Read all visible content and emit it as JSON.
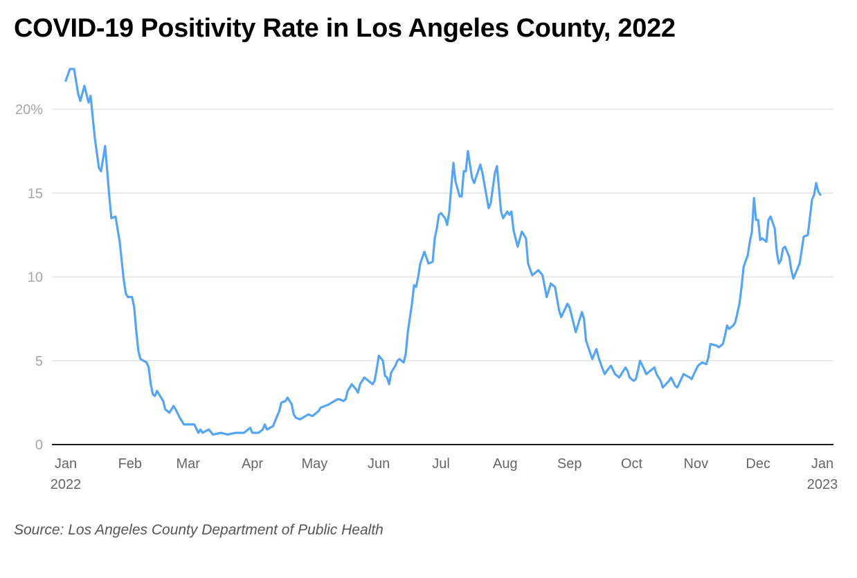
{
  "chart_data": {
    "type": "line",
    "title": "COVID-19 Positivity Rate in Los Angeles County, 2022",
    "source": "Source: Los Angeles County Department of Public Health",
    "xlabel": "",
    "ylabel": "",
    "ylim": [
      0,
      22.5
    ],
    "xlim": [
      "2022-01-01",
      "2023-01-01"
    ],
    "grid": true,
    "line_color": "#55a5f3",
    "y_ticks": [
      {
        "value": 0,
        "label": "0"
      },
      {
        "value": 5,
        "label": "5"
      },
      {
        "value": 10,
        "label": "10"
      },
      {
        "value": 15,
        "label": "15"
      },
      {
        "value": 20,
        "label": "20%"
      }
    ],
    "x_ticks": [
      {
        "date": "2022-01-01",
        "label": "Jan",
        "sub": "2022"
      },
      {
        "date": "2022-02-01",
        "label": "Feb",
        "sub": ""
      },
      {
        "date": "2022-03-01",
        "label": "Mar",
        "sub": ""
      },
      {
        "date": "2022-04-01",
        "label": "Apr",
        "sub": ""
      },
      {
        "date": "2022-05-01",
        "label": "May",
        "sub": ""
      },
      {
        "date": "2022-06-01",
        "label": "Jun",
        "sub": ""
      },
      {
        "date": "2022-07-01",
        "label": "Jul",
        "sub": ""
      },
      {
        "date": "2022-08-01",
        "label": "Aug",
        "sub": ""
      },
      {
        "date": "2022-09-01",
        "label": "Sep",
        "sub": ""
      },
      {
        "date": "2022-10-01",
        "label": "Oct",
        "sub": ""
      },
      {
        "date": "2022-11-01",
        "label": "Nov",
        "sub": ""
      },
      {
        "date": "2022-12-01",
        "label": "Dec",
        "sub": ""
      },
      {
        "date": "2023-01-01",
        "label": "Jan",
        "sub": "2023"
      }
    ],
    "series": [
      {
        "points": [
          [
            "2022-01-01",
            21.7
          ],
          [
            "2022-01-03",
            22.4
          ],
          [
            "2022-01-05",
            22.4
          ],
          [
            "2022-01-07",
            20.9
          ],
          [
            "2022-01-08",
            20.5
          ],
          [
            "2022-01-10",
            21.4
          ],
          [
            "2022-01-12",
            20.4
          ],
          [
            "2022-01-13",
            20.8
          ],
          [
            "2022-01-15",
            18.3
          ],
          [
            "2022-01-17",
            16.5
          ],
          [
            "2022-01-18",
            16.3
          ],
          [
            "2022-01-20",
            17.8
          ],
          [
            "2022-01-22",
            14.8
          ],
          [
            "2022-01-23",
            13.5
          ],
          [
            "2022-01-25",
            13.6
          ],
          [
            "2022-01-27",
            12.1
          ],
          [
            "2022-01-29",
            9.8
          ],
          [
            "2022-01-30",
            9.0
          ],
          [
            "2022-01-31",
            8.8
          ],
          [
            "2022-02-02",
            8.8
          ],
          [
            "2022-02-03",
            8.2
          ],
          [
            "2022-02-04",
            6.8
          ],
          [
            "2022-02-05",
            5.6
          ],
          [
            "2022-02-06",
            5.1
          ],
          [
            "2022-02-09",
            4.9
          ],
          [
            "2022-02-10",
            4.6
          ],
          [
            "2022-02-11",
            3.6
          ],
          [
            "2022-02-12",
            3.0
          ],
          [
            "2022-02-13",
            2.9
          ],
          [
            "2022-02-14",
            3.2
          ],
          [
            "2022-02-17",
            2.6
          ],
          [
            "2022-02-18",
            2.1
          ],
          [
            "2022-02-20",
            1.9
          ],
          [
            "2022-02-22",
            2.3
          ],
          [
            "2022-02-23",
            2.1
          ],
          [
            "2022-02-25",
            1.6
          ],
          [
            "2022-02-26",
            1.4
          ],
          [
            "2022-02-27",
            1.2
          ],
          [
            "2022-03-03",
            1.2
          ],
          [
            "2022-03-04",
            1.2
          ],
          [
            "2022-03-06",
            0.7
          ],
          [
            "2022-03-07",
            0.9
          ],
          [
            "2022-03-08",
            0.7
          ],
          [
            "2022-03-11",
            0.9
          ],
          [
            "2022-03-13",
            0.6
          ],
          [
            "2022-03-17",
            0.7
          ],
          [
            "2022-03-20",
            0.6
          ],
          [
            "2022-03-24",
            0.7
          ],
          [
            "2022-03-28",
            0.7
          ],
          [
            "2022-03-31",
            1.0
          ],
          [
            "2022-04-01",
            0.7
          ],
          [
            "2022-04-04",
            0.7
          ],
          [
            "2022-04-06",
            0.9
          ],
          [
            "2022-04-07",
            1.2
          ],
          [
            "2022-04-08",
            0.9
          ],
          [
            "2022-04-11",
            1.1
          ],
          [
            "2022-04-12",
            1.4
          ],
          [
            "2022-04-14",
            2.0
          ],
          [
            "2022-04-15",
            2.5
          ],
          [
            "2022-04-17",
            2.6
          ],
          [
            "2022-04-18",
            2.8
          ],
          [
            "2022-04-20",
            2.4
          ],
          [
            "2022-04-21",
            1.8
          ],
          [
            "2022-04-22",
            1.6
          ],
          [
            "2022-04-24",
            1.5
          ],
          [
            "2022-04-28",
            1.8
          ],
          [
            "2022-04-30",
            1.7
          ],
          [
            "2022-05-03",
            2.0
          ],
          [
            "2022-05-04",
            2.2
          ],
          [
            "2022-05-08",
            2.4
          ],
          [
            "2022-05-12",
            2.7
          ],
          [
            "2022-05-13",
            2.7
          ],
          [
            "2022-05-15",
            2.6
          ],
          [
            "2022-05-16",
            2.7
          ],
          [
            "2022-05-17",
            3.2
          ],
          [
            "2022-05-19",
            3.6
          ],
          [
            "2022-05-21",
            3.3
          ],
          [
            "2022-05-22",
            3.1
          ],
          [
            "2022-05-23",
            3.6
          ],
          [
            "2022-05-25",
            4.0
          ],
          [
            "2022-05-27",
            3.8
          ],
          [
            "2022-05-29",
            3.6
          ],
          [
            "2022-05-30",
            3.8
          ],
          [
            "2022-05-31",
            4.5
          ],
          [
            "2022-06-01",
            5.3
          ],
          [
            "2022-06-03",
            5.0
          ],
          [
            "2022-06-04",
            4.1
          ],
          [
            "2022-06-05",
            4.0
          ],
          [
            "2022-06-06",
            3.6
          ],
          [
            "2022-06-07",
            4.3
          ],
          [
            "2022-06-09",
            4.7
          ],
          [
            "2022-06-10",
            5.0
          ],
          [
            "2022-06-11",
            5.1
          ],
          [
            "2022-06-13",
            4.9
          ],
          [
            "2022-06-14",
            5.4
          ],
          [
            "2022-06-15",
            6.7
          ],
          [
            "2022-06-17",
            8.4
          ],
          [
            "2022-06-18",
            9.5
          ],
          [
            "2022-06-19",
            9.4
          ],
          [
            "2022-06-20",
            10.0
          ],
          [
            "2022-06-21",
            10.8
          ],
          [
            "2022-06-23",
            11.5
          ],
          [
            "2022-06-25",
            10.8
          ],
          [
            "2022-06-27",
            10.9
          ],
          [
            "2022-06-28",
            12.3
          ],
          [
            "2022-06-29",
            12.9
          ],
          [
            "2022-06-30",
            13.7
          ],
          [
            "2022-07-01",
            13.8
          ],
          [
            "2022-07-03",
            13.5
          ],
          [
            "2022-07-04",
            13.1
          ],
          [
            "2022-07-05",
            13.9
          ],
          [
            "2022-07-06",
            15.4
          ],
          [
            "2022-07-07",
            16.8
          ],
          [
            "2022-07-08",
            15.7
          ],
          [
            "2022-07-10",
            14.8
          ],
          [
            "2022-07-11",
            14.8
          ],
          [
            "2022-07-12",
            16.3
          ],
          [
            "2022-07-13",
            16.3
          ],
          [
            "2022-07-14",
            17.5
          ],
          [
            "2022-07-16",
            15.9
          ],
          [
            "2022-07-17",
            15.6
          ],
          [
            "2022-07-20",
            16.7
          ],
          [
            "2022-07-21",
            16.2
          ],
          [
            "2022-07-24",
            14.1
          ],
          [
            "2022-07-25",
            14.4
          ],
          [
            "2022-07-27",
            16.2
          ],
          [
            "2022-07-28",
            16.6
          ],
          [
            "2022-07-30",
            13.9
          ],
          [
            "2022-07-31",
            13.5
          ],
          [
            "2022-08-02",
            13.9
          ],
          [
            "2022-08-03",
            13.7
          ],
          [
            "2022-08-04",
            13.9
          ],
          [
            "2022-08-05",
            12.8
          ],
          [
            "2022-08-07",
            11.8
          ],
          [
            "2022-08-09",
            12.7
          ],
          [
            "2022-08-11",
            12.3
          ],
          [
            "2022-08-12",
            10.8
          ],
          [
            "2022-08-14",
            10.1
          ],
          [
            "2022-08-17",
            10.4
          ],
          [
            "2022-08-19",
            10.1
          ],
          [
            "2022-08-21",
            8.8
          ],
          [
            "2022-08-23",
            9.6
          ],
          [
            "2022-08-25",
            9.4
          ],
          [
            "2022-08-27",
            8.0
          ],
          [
            "2022-08-28",
            7.6
          ],
          [
            "2022-08-31",
            8.4
          ],
          [
            "2022-09-01",
            8.2
          ],
          [
            "2022-09-04",
            6.7
          ],
          [
            "2022-09-07",
            7.9
          ],
          [
            "2022-09-08",
            7.5
          ],
          [
            "2022-09-09",
            6.2
          ],
          [
            "2022-09-12",
            5.1
          ],
          [
            "2022-09-14",
            5.7
          ],
          [
            "2022-09-15",
            5.2
          ],
          [
            "2022-09-17",
            4.5
          ],
          [
            "2022-09-18",
            4.2
          ],
          [
            "2022-09-19",
            4.4
          ],
          [
            "2022-09-21",
            4.7
          ],
          [
            "2022-09-23",
            4.2
          ],
          [
            "2022-09-25",
            4.0
          ],
          [
            "2022-09-28",
            4.6
          ],
          [
            "2022-09-29",
            4.4
          ],
          [
            "2022-09-30",
            4.0
          ],
          [
            "2022-10-02",
            3.8
          ],
          [
            "2022-10-03",
            3.9
          ],
          [
            "2022-10-04",
            4.4
          ],
          [
            "2022-10-05",
            5.0
          ],
          [
            "2022-10-07",
            4.5
          ],
          [
            "2022-10-08",
            4.2
          ],
          [
            "2022-10-11",
            4.5
          ],
          [
            "2022-10-12",
            4.6
          ],
          [
            "2022-10-13",
            4.2
          ],
          [
            "2022-10-15",
            3.8
          ],
          [
            "2022-10-16",
            3.4
          ],
          [
            "2022-10-19",
            3.8
          ],
          [
            "2022-10-20",
            4.0
          ],
          [
            "2022-10-22",
            3.5
          ],
          [
            "2022-10-23",
            3.4
          ],
          [
            "2022-10-26",
            4.2
          ],
          [
            "2022-10-29",
            4.0
          ],
          [
            "2022-10-30",
            3.9
          ],
          [
            "2022-10-31",
            4.2
          ],
          [
            "2022-11-02",
            4.7
          ],
          [
            "2022-11-04",
            4.9
          ],
          [
            "2022-11-06",
            4.8
          ],
          [
            "2022-11-07",
            5.2
          ],
          [
            "2022-11-08",
            6.0
          ],
          [
            "2022-11-11",
            5.9
          ],
          [
            "2022-11-12",
            5.8
          ],
          [
            "2022-11-14",
            6.0
          ],
          [
            "2022-11-15",
            6.5
          ],
          [
            "2022-11-16",
            7.1
          ],
          [
            "2022-11-17",
            6.9
          ],
          [
            "2022-11-19",
            7.1
          ],
          [
            "2022-11-20",
            7.3
          ],
          [
            "2022-11-22",
            8.4
          ],
          [
            "2022-11-23",
            9.4
          ],
          [
            "2022-11-24",
            10.6
          ],
          [
            "2022-11-26",
            11.3
          ],
          [
            "2022-11-27",
            12.1
          ],
          [
            "2022-11-28",
            12.7
          ],
          [
            "2022-11-29",
            14.7
          ],
          [
            "2022-11-30",
            13.4
          ],
          [
            "2022-12-01",
            13.4
          ],
          [
            "2022-12-02",
            12.2
          ],
          [
            "2022-12-03",
            12.3
          ],
          [
            "2022-12-05",
            12.1
          ],
          [
            "2022-12-06",
            13.4
          ],
          [
            "2022-12-07",
            13.6
          ],
          [
            "2022-12-09",
            12.9
          ],
          [
            "2022-12-10",
            11.5
          ],
          [
            "2022-12-11",
            10.8
          ],
          [
            "2022-12-12",
            11.0
          ],
          [
            "2022-12-13",
            11.7
          ],
          [
            "2022-12-14",
            11.8
          ],
          [
            "2022-12-16",
            11.2
          ],
          [
            "2022-12-17",
            10.4
          ],
          [
            "2022-12-18",
            9.9
          ],
          [
            "2022-12-19",
            10.2
          ],
          [
            "2022-12-21",
            10.8
          ],
          [
            "2022-12-22",
            11.6
          ],
          [
            "2022-12-23",
            12.4
          ],
          [
            "2022-12-25",
            12.5
          ],
          [
            "2022-12-27",
            14.6
          ],
          [
            "2022-12-28",
            14.9
          ],
          [
            "2022-12-29",
            15.6
          ],
          [
            "2022-12-30",
            15.1
          ],
          [
            "2022-12-31",
            14.9
          ]
        ]
      }
    ]
  }
}
